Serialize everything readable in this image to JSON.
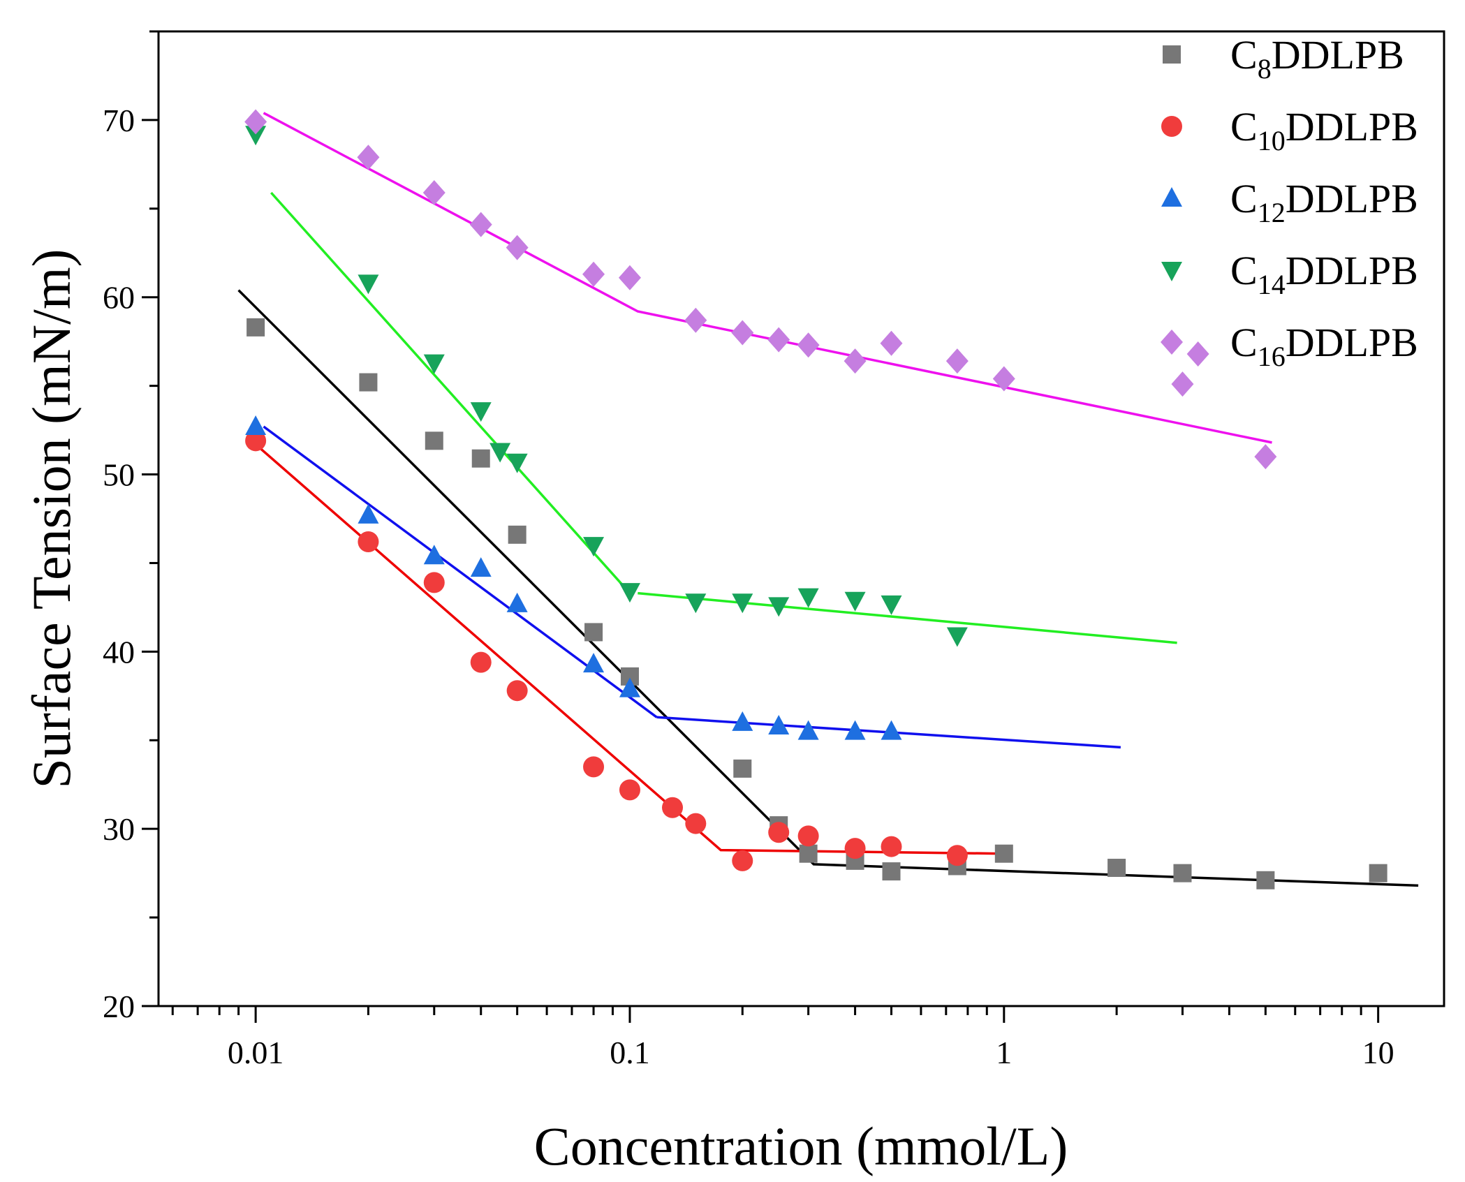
{
  "chart_data": {
    "type": "scatter",
    "xlabel": "Concentration (mmol/L)",
    "ylabel": "Surface Tension (mN/m)",
    "x_scale": "log",
    "xlim": [
      0.0055,
      15
    ],
    "ylim": [
      20,
      75
    ],
    "x_ticks": [
      {
        "value": 0.01,
        "label": "0.01"
      },
      {
        "value": 0.1,
        "label": "0.1"
      },
      {
        "value": 1,
        "label": "1"
      },
      {
        "value": 10,
        "label": "10"
      }
    ],
    "y_ticks": [
      {
        "value": 20,
        "label": "20"
      },
      {
        "value": 30,
        "label": "30"
      },
      {
        "value": 40,
        "label": "40"
      },
      {
        "value": 50,
        "label": "50"
      },
      {
        "value": 60,
        "label": "60"
      },
      {
        "value": 70,
        "label": "70"
      }
    ],
    "grid": false,
    "legend_position": "top-right",
    "series": [
      {
        "name_base": "C",
        "name_sub": "8",
        "name_rest": "DDLPB",
        "marker": "square",
        "color": "#777777",
        "line_color": "#000000",
        "points": [
          [
            0.01,
            58.3
          ],
          [
            0.02,
            55.2
          ],
          [
            0.03,
            51.9
          ],
          [
            0.04,
            50.9
          ],
          [
            0.05,
            46.6
          ],
          [
            0.08,
            41.1
          ],
          [
            0.1,
            38.6
          ],
          [
            0.2,
            33.4
          ],
          [
            0.25,
            30.2
          ],
          [
            0.3,
            28.6
          ],
          [
            0.4,
            28.2
          ],
          [
            0.5,
            27.6
          ],
          [
            0.75,
            27.9
          ],
          [
            1,
            28.6
          ],
          [
            2,
            27.8
          ],
          [
            3,
            27.5
          ],
          [
            5,
            27.1
          ],
          [
            10,
            27.5
          ]
        ],
        "fit": [
          [
            0.009,
            60.4
          ],
          [
            0.31,
            28.0
          ],
          [
            12.8,
            26.8
          ]
        ]
      },
      {
        "name_base": "C",
        "name_sub": "10",
        "name_rest": "DDLPB",
        "marker": "circle",
        "color": "#f03c3c",
        "line_color": "#ee0000",
        "points": [
          [
            0.01,
            51.9
          ],
          [
            0.02,
            46.2
          ],
          [
            0.03,
            43.9
          ],
          [
            0.04,
            39.4
          ],
          [
            0.05,
            37.8
          ],
          [
            0.08,
            33.5
          ],
          [
            0.1,
            32.2
          ],
          [
            0.13,
            31.2
          ],
          [
            0.15,
            30.3
          ],
          [
            0.2,
            28.2
          ],
          [
            0.25,
            29.8
          ],
          [
            0.3,
            29.6
          ],
          [
            0.4,
            28.9
          ],
          [
            0.5,
            29.0
          ],
          [
            0.75,
            28.5
          ]
        ],
        "fit": [
          [
            0.01,
            51.7
          ],
          [
            0.175,
            28.8
          ],
          [
            1.0,
            28.6
          ]
        ]
      },
      {
        "name_base": "C",
        "name_sub": "12",
        "name_rest": "DDLPB",
        "marker": "triangle-up",
        "color": "#1e6fe0",
        "line_color": "#1010ee",
        "points": [
          [
            0.01,
            52.7
          ],
          [
            0.02,
            47.7
          ],
          [
            0.03,
            45.4
          ],
          [
            0.04,
            44.7
          ],
          [
            0.05,
            42.7
          ],
          [
            0.08,
            39.3
          ],
          [
            0.1,
            37.9
          ],
          [
            0.2,
            36.0
          ],
          [
            0.25,
            35.8
          ],
          [
            0.3,
            35.5
          ],
          [
            0.4,
            35.5
          ],
          [
            0.5,
            35.5
          ]
        ],
        "fit_segments": [
          [
            [
              0.0105,
              52.7
            ],
            [
              0.118,
              36.3
            ]
          ],
          [
            [
              0.118,
              36.3
            ],
            [
              2.05,
              34.6
            ]
          ]
        ]
      },
      {
        "name_base": "C",
        "name_sub": "14",
        "name_rest": "DDLPB",
        "marker": "triangle-down",
        "color": "#17a35a",
        "line_color": "#22ee22",
        "points": [
          [
            0.01,
            69.2
          ],
          [
            0.02,
            60.8
          ],
          [
            0.03,
            56.3
          ],
          [
            0.04,
            53.6
          ],
          [
            0.045,
            51.3
          ],
          [
            0.05,
            50.7
          ],
          [
            0.08,
            46.0
          ],
          [
            0.1,
            43.4
          ],
          [
            0.15,
            42.8
          ],
          [
            0.2,
            42.8
          ],
          [
            0.25,
            42.6
          ],
          [
            0.3,
            43.1
          ],
          [
            0.4,
            42.9
          ],
          [
            0.5,
            42.7
          ],
          [
            0.75,
            40.9
          ]
        ],
        "fit_segments": [
          [
            [
              0.011,
              65.9
            ],
            [
              0.1,
              43.3
            ]
          ],
          [
            [
              0.105,
              43.3
            ],
            [
              2.9,
              40.5
            ]
          ]
        ]
      },
      {
        "name_base": "C",
        "name_sub": "16",
        "name_rest": "DDLPB",
        "marker": "diamond",
        "color": "#c57ee0",
        "line_color": "#ee11ee",
        "points": [
          [
            0.01,
            69.9
          ],
          [
            0.02,
            67.9
          ],
          [
            0.03,
            65.9
          ],
          [
            0.04,
            64.1
          ],
          [
            0.05,
            62.8
          ],
          [
            0.08,
            61.3
          ],
          [
            0.1,
            61.1
          ],
          [
            0.15,
            58.7
          ],
          [
            0.2,
            58.0
          ],
          [
            0.25,
            57.6
          ],
          [
            0.3,
            57.3
          ],
          [
            0.4,
            56.4
          ],
          [
            0.5,
            57.4
          ],
          [
            0.75,
            56.4
          ],
          [
            1,
            55.4
          ],
          [
            3,
            55.1
          ],
          [
            3.3,
            56.8
          ],
          [
            5,
            51.0
          ]
        ],
        "fit": [
          [
            0.0105,
            70.4
          ],
          [
            0.105,
            59.2
          ],
          [
            5.2,
            51.8
          ]
        ]
      }
    ]
  }
}
